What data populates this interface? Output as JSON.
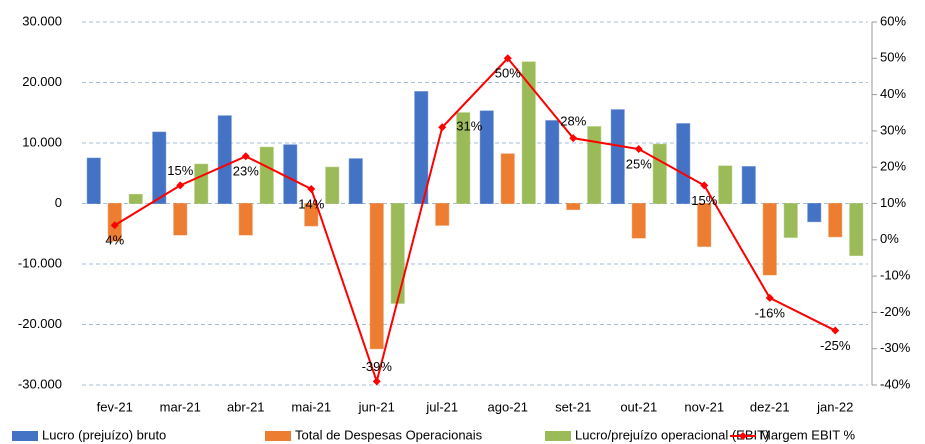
{
  "chart_data": {
    "type": "bar_line",
    "categories": [
      "fev-21",
      "mar-21",
      "abr-21",
      "mai-21",
      "jun-21",
      "jul-21",
      "ago-21",
      "set-21",
      "out-21",
      "nov-21",
      "dez-21",
      "jan-22"
    ],
    "series": [
      {
        "name": "Lucro (prejuízo) bruto",
        "color": "#4472c4",
        "values": [
          7500,
          11800,
          14500,
          9700,
          7400,
          18500,
          15300,
          13700,
          15500,
          13200,
          6100,
          -3000
        ]
      },
      {
        "name": "Total de Despesas Operacionais",
        "color": "#ed7d31",
        "values": [
          -6200,
          -5200,
          -5200,
          -3700,
          -24000,
          -3600,
          8200,
          -1000,
          -5700,
          -7100,
          -11800,
          -5500
        ]
      },
      {
        "name": "Lucro/prejuízo operacional (EBIT)",
        "color": "#9bbb59",
        "values": [
          1500,
          6500,
          9300,
          6000,
          -16500,
          15000,
          23400,
          12700,
          9800,
          6200,
          -5600,
          -8600
        ]
      },
      {
        "name": "Margem EBIT %",
        "color": "#ff0000",
        "axis": "y2",
        "values": [
          4,
          15,
          23,
          14,
          -39,
          31,
          50,
          28,
          25,
          15,
          -16,
          -25
        ],
        "value_labels": [
          "4%",
          "15%",
          "23%",
          "14%",
          "-39%",
          "31%",
          "50%",
          "28%",
          "25%",
          "15%",
          "-16%",
          "-25%"
        ]
      }
    ],
    "ylim": [
      -30000,
      30000
    ],
    "yticks": [
      {
        "value": -30000,
        "label": "-30.000"
      },
      {
        "value": -20000,
        "label": "-20.000"
      },
      {
        "value": -10000,
        "label": "-10.000"
      },
      0,
      {
        "value": 10000,
        "label": "10.000"
      },
      {
        "value": 20000,
        "label": "20.000"
      },
      {
        "value": 30000,
        "label": "30.000"
      }
    ],
    "y2lim": [
      -40,
      60
    ],
    "y2ticks": [
      {
        "value": -40,
        "label": "-40%"
      },
      {
        "value": -30,
        "label": "-30%"
      },
      {
        "value": -20,
        "label": "-20%"
      },
      {
        "value": -10,
        "label": "-10%"
      },
      {
        "value": 0,
        "label": "0%"
      },
      {
        "value": 10,
        "label": "10%"
      },
      {
        "value": 20,
        "label": "20%"
      },
      {
        "value": 30,
        "label": "30%"
      },
      {
        "value": 40,
        "label": "40%"
      },
      {
        "value": 50,
        "label": "50%"
      },
      {
        "value": 60,
        "label": "60%"
      }
    ],
    "grid": true,
    "legend": "bottom"
  }
}
